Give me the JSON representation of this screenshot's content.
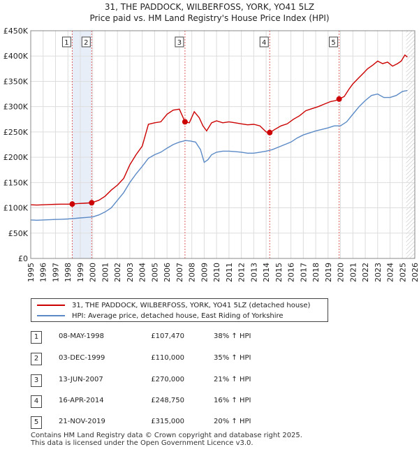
{
  "chart_data": {
    "type": "line",
    "title": "31, THE PADDOCK, WILBERFOSS, YORK, YO41 5LZ",
    "subtitle": "Price paid vs. HM Land Registry's House Price Index (HPI)",
    "xlabel": "",
    "ylabel": "",
    "xlim": [
      1995,
      2026
    ],
    "ylim": [
      0,
      450000
    ],
    "y_ticks": [
      0,
      50000,
      100000,
      150000,
      200000,
      250000,
      300000,
      350000,
      400000,
      450000
    ],
    "y_tick_labels": [
      "£0",
      "£50K",
      "£100K",
      "£150K",
      "£200K",
      "£250K",
      "£300K",
      "£350K",
      "£400K",
      "£450K"
    ],
    "x_ticks": [
      1995,
      1996,
      1997,
      1998,
      1999,
      2000,
      2001,
      2002,
      2003,
      2004,
      2005,
      2006,
      2007,
      2008,
      2009,
      2010,
      2011,
      2012,
      2013,
      2014,
      2015,
      2016,
      2017,
      2018,
      2019,
      2020,
      2021,
      2022,
      2023,
      2024,
      2025,
      2026
    ],
    "grid": true,
    "shaded_span": [
      1998.35,
      1999.92
    ],
    "future_hatch_start": 2025.3,
    "series": [
      {
        "name": "31, THE PADDOCK, WILBERFOSS, YORK, YO41 5LZ (detached house)",
        "color": "#cc0000",
        "x": [
          1995.0,
          1995.5,
          1996.0,
          1996.5,
          1997.0,
          1997.5,
          1998.0,
          1998.35,
          1998.8,
          1999.3,
          1999.92,
          2000.5,
          2001.0,
          2001.5,
          2002.0,
          2002.5,
          2003.0,
          2003.5,
          2004.0,
          2004.5,
          2005.0,
          2005.5,
          2006.0,
          2006.5,
          2007.0,
          2007.45,
          2007.8,
          2008.2,
          2008.6,
          2008.9,
          2009.2,
          2009.6,
          2010.0,
          2010.5,
          2011.0,
          2011.5,
          2012.0,
          2012.5,
          2013.0,
          2013.5,
          2014.0,
          2014.29,
          2014.7,
          2015.2,
          2015.7,
          2016.2,
          2016.7,
          2017.2,
          2017.7,
          2018.2,
          2018.7,
          2019.2,
          2019.6,
          2019.89,
          2020.3,
          2020.7,
          2021.0,
          2021.4,
          2021.8,
          2022.2,
          2022.6,
          2023.0,
          2023.4,
          2023.8,
          2024.2,
          2024.6,
          2024.9,
          2025.2,
          2025.4
        ],
        "values": [
          106000,
          105500,
          106000,
          106500,
          107000,
          107200,
          107300,
          107470,
          108500,
          109000,
          110000,
          115000,
          123000,
          135000,
          145000,
          158000,
          185000,
          205000,
          222000,
          265000,
          268000,
          270000,
          285000,
          293000,
          295000,
          270000,
          268000,
          290000,
          278000,
          262000,
          252000,
          268000,
          272000,
          268000,
          270000,
          268000,
          266000,
          264000,
          265000,
          262000,
          250000,
          248750,
          255000,
          262000,
          266000,
          275000,
          282000,
          292000,
          296000,
          300000,
          305000,
          310000,
          312000,
          315000,
          320000,
          335000,
          345000,
          355000,
          365000,
          375000,
          382000,
          390000,
          385000,
          388000,
          380000,
          385000,
          390000,
          402000,
          398000
        ]
      },
      {
        "name": "HPI: Average price, detached house, East Riding of Yorkshire",
        "color": "#5b8ac6",
        "x": [
          1995.0,
          1995.5,
          1996.0,
          1996.5,
          1997.0,
          1997.5,
          1998.0,
          1998.5,
          1999.0,
          1999.5,
          2000.0,
          2000.5,
          2001.0,
          2001.5,
          2002.0,
          2002.5,
          2003.0,
          2003.5,
          2004.0,
          2004.5,
          2005.0,
          2005.5,
          2006.0,
          2006.5,
          2007.0,
          2007.5,
          2007.9,
          2008.3,
          2008.7,
          2009.0,
          2009.3,
          2009.6,
          2010.0,
          2010.5,
          2011.0,
          2011.5,
          2012.0,
          2012.5,
          2013.0,
          2013.5,
          2014.0,
          2014.5,
          2015.0,
          2015.5,
          2016.0,
          2016.5,
          2017.0,
          2017.5,
          2018.0,
          2018.5,
          2019.0,
          2019.5,
          2020.0,
          2020.5,
          2021.0,
          2021.5,
          2022.0,
          2022.5,
          2023.0,
          2023.5,
          2024.0,
          2024.5,
          2025.0,
          2025.4
        ],
        "values": [
          76000,
          75500,
          76000,
          76500,
          77000,
          77500,
          78000,
          79000,
          80000,
          81000,
          82000,
          86000,
          92000,
          100000,
          115000,
          130000,
          150000,
          167000,
          182000,
          198000,
          205000,
          210000,
          218000,
          225000,
          230000,
          233000,
          232000,
          230000,
          215000,
          190000,
          195000,
          205000,
          210000,
          212000,
          212000,
          211000,
          210000,
          208000,
          208000,
          210000,
          212000,
          215000,
          220000,
          225000,
          230000,
          238000,
          244000,
          248000,
          252000,
          255000,
          258000,
          262000,
          262000,
          270000,
          285000,
          300000,
          312000,
          322000,
          325000,
          318000,
          318000,
          322000,
          330000,
          332000
        ]
      }
    ],
    "sales": [
      {
        "label": "1",
        "x": 1998.35,
        "value": 107470
      },
      {
        "label": "2",
        "x": 1999.92,
        "value": 110000
      },
      {
        "label": "3",
        "x": 2007.45,
        "value": 270000
      },
      {
        "label": "4",
        "x": 2014.29,
        "value": 248750
      },
      {
        "label": "5",
        "x": 2019.89,
        "value": 315000
      }
    ]
  },
  "colors": {
    "price_line": "#cc0000",
    "hpi_line": "#5b8ac6",
    "shade": "#e8eef8",
    "grid": "#dddddd",
    "vline": "#e06060"
  },
  "legend": {
    "price_label": "31, THE PADDOCK, WILBERFOSS, YORK, YO41 5LZ (detached house)",
    "hpi_label": "HPI: Average price, detached house, East Riding of Yorkshire"
  },
  "transactions": [
    {
      "num": "1",
      "date": "08-MAY-1998",
      "price": "£107,470",
      "hpi": "38% ↑ HPI"
    },
    {
      "num": "2",
      "date": "03-DEC-1999",
      "price": "£110,000",
      "hpi": "35% ↑ HPI"
    },
    {
      "num": "3",
      "date": "13-JUN-2007",
      "price": "£270,000",
      "hpi": "21% ↑ HPI"
    },
    {
      "num": "4",
      "date": "16-APR-2014",
      "price": "£248,750",
      "hpi": "16% ↑ HPI"
    },
    {
      "num": "5",
      "date": "21-NOV-2019",
      "price": "£315,000",
      "hpi": "20% ↑ HPI"
    }
  ],
  "footer": {
    "line1": "Contains HM Land Registry data © Crown copyright and database right 2025.",
    "line2": "This data is licensed under the Open Government Licence v3.0."
  }
}
